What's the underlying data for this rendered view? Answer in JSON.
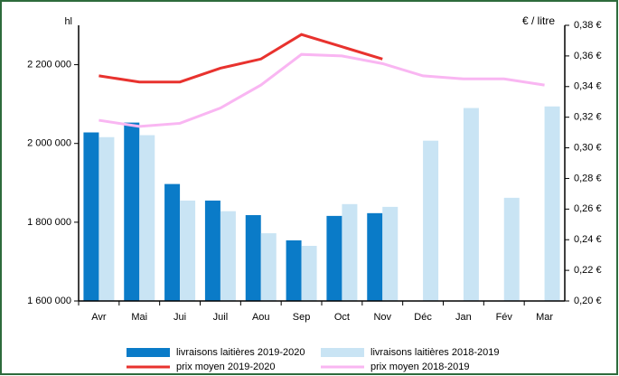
{
  "chart_data": {
    "type": "bar-line",
    "y_label": "hl",
    "y2_label": "€ / litre",
    "categories": [
      "Avr",
      "Mai",
      "Jui",
      "Juil",
      "Aou",
      "Sep",
      "Oct",
      "Nov",
      "Déc",
      "Jan",
      "Fév",
      "Mar"
    ],
    "series": [
      {
        "name": "livraisons laitières 2019-2020",
        "kind": "bar",
        "color": "#0a7bc8",
        "values": [
          2028000,
          2053000,
          1897000,
          1855000,
          1818000,
          1754000,
          1816000,
          1823000,
          null,
          null,
          null,
          null
        ]
      },
      {
        "name": "livraisons laitières 2018-2019",
        "kind": "bar",
        "color": "#c9e4f4",
        "values": [
          2016000,
          2021000,
          1855000,
          1828000,
          1772000,
          1740000,
          1846000,
          1839000,
          2007000,
          2090000,
          1862000,
          2094000
        ]
      },
      {
        "name": "prix moyen 2019-2020",
        "kind": "line",
        "axis": "y2",
        "color": "#e8322e",
        "values": [
          0.347,
          0.343,
          0.343,
          0.352,
          0.358,
          0.374,
          0.366,
          0.358,
          null,
          null,
          null,
          null
        ]
      },
      {
        "name": "prix moyen 2018-2019",
        "kind": "line",
        "axis": "y2",
        "color": "#f9b6f2",
        "values": [
          0.318,
          0.314,
          0.316,
          0.326,
          0.341,
          0.361,
          0.36,
          0.355,
          0.347,
          0.345,
          0.345,
          0.341
        ]
      }
    ],
    "ylim": [
      1600000,
      2300000
    ],
    "yticks": [
      {
        "value": 1600000,
        "label": "1 600 000"
      },
      {
        "value": 1800000,
        "label": "1 800 000"
      },
      {
        "value": 2000000,
        "label": "2 000 000"
      },
      {
        "value": 2200000,
        "label": "2 200 000"
      }
    ],
    "y2lim": [
      0.2,
      0.38
    ],
    "y2ticks": [
      {
        "value": 0.2,
        "label": "0,20 €"
      },
      {
        "value": 0.22,
        "label": "0,22 €"
      },
      {
        "value": 0.24,
        "label": "0,24 €"
      },
      {
        "value": 0.26,
        "label": "0,26 €"
      },
      {
        "value": 0.28,
        "label": "0,28 €"
      },
      {
        "value": 0.3,
        "label": "0,30 €"
      },
      {
        "value": 0.32,
        "label": "0,32 €"
      },
      {
        "value": 0.34,
        "label": "0,34 €"
      },
      {
        "value": 0.36,
        "label": "0,36 €"
      },
      {
        "value": 0.38,
        "label": "0,38 €"
      }
    ]
  }
}
